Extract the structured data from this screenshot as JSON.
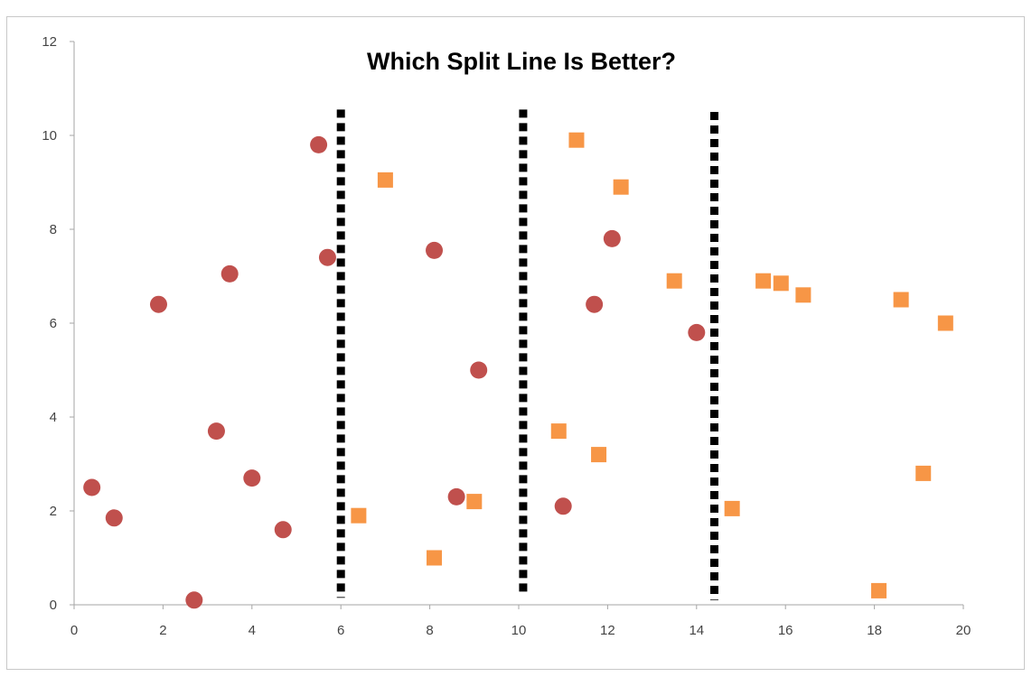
{
  "chart_data": {
    "type": "scatter",
    "title": "Which Split Line Is Better?",
    "xlabel": "",
    "ylabel": "",
    "xlim": [
      0,
      20
    ],
    "ylim": [
      0,
      12
    ],
    "x_ticks": [
      0,
      2,
      4,
      6,
      8,
      10,
      12,
      14,
      16,
      18,
      20
    ],
    "y_ticks": [
      0,
      2,
      4,
      6,
      8,
      10,
      12
    ],
    "grid": false,
    "legend": "none",
    "series": [
      {
        "marker": "circle",
        "color": "#c0504d",
        "points": [
          [
            0.4,
            2.5
          ],
          [
            0.9,
            1.85
          ],
          [
            1.9,
            6.4
          ],
          [
            2.7,
            0.1
          ],
          [
            3.2,
            3.7
          ],
          [
            3.5,
            7.05
          ],
          [
            4.0,
            2.7
          ],
          [
            4.7,
            1.6
          ],
          [
            5.5,
            9.8
          ],
          [
            5.7,
            7.4
          ],
          [
            8.1,
            7.55
          ],
          [
            8.6,
            2.3
          ],
          [
            9.1,
            5.0
          ],
          [
            11.0,
            2.1
          ],
          [
            11.7,
            6.4
          ],
          [
            12.1,
            7.8
          ],
          [
            14.0,
            5.8
          ]
        ]
      },
      {
        "marker": "square",
        "color": "#f79646",
        "points": [
          [
            6.4,
            1.9
          ],
          [
            7.0,
            9.05
          ],
          [
            8.1,
            1.0
          ],
          [
            9.0,
            2.2
          ],
          [
            10.9,
            3.7
          ],
          [
            11.3,
            9.9
          ],
          [
            11.8,
            3.2
          ],
          [
            12.3,
            8.9
          ],
          [
            13.5,
            6.9
          ],
          [
            14.8,
            2.05
          ],
          [
            15.5,
            6.9
          ],
          [
            15.9,
            6.85
          ],
          [
            16.4,
            6.6
          ],
          [
            18.1,
            0.3
          ],
          [
            18.6,
            6.5
          ],
          [
            19.1,
            2.8
          ],
          [
            19.6,
            6.0
          ]
        ]
      }
    ],
    "split_lines": [
      {
        "x": 6.0,
        "y_range": [
          0.15,
          10.55
        ]
      },
      {
        "x": 10.1,
        "y_range": [
          0.2,
          10.55
        ]
      },
      {
        "x": 14.4,
        "y_range": [
          0.1,
          10.5
        ]
      }
    ]
  }
}
